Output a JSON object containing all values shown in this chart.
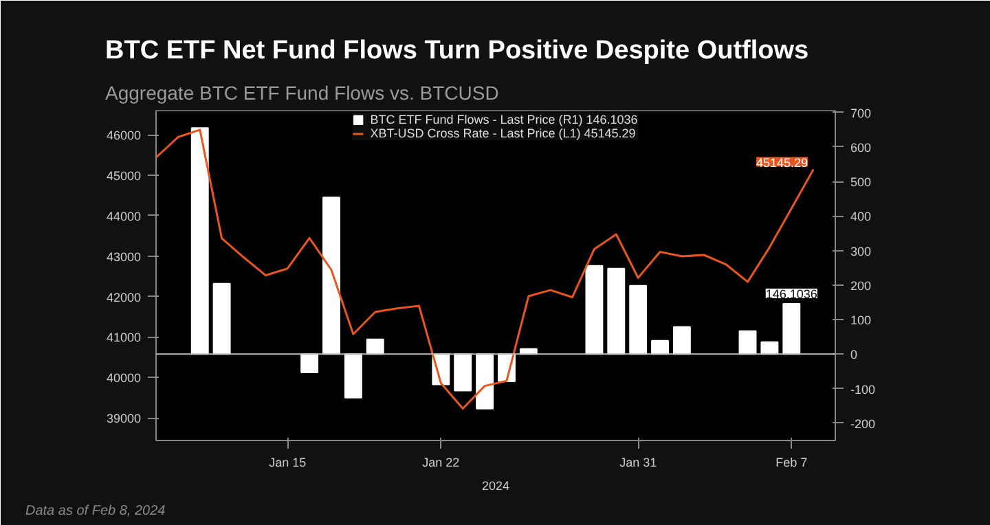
{
  "chart_data": {
    "type": "bar",
    "title": "BTC ETF Net Fund Flows Turn Positive Despite Outflows",
    "subtitle": "Aggregate BTC ETF Fund Flows vs. BTCUSD",
    "xlabel": "2024",
    "annotations": [
      "Data as of Feb 8, 2024"
    ],
    "xlim": [
      "2024-01-09",
      "2024-02-09"
    ],
    "xticks": [
      {
        "value": "2024-01-15",
        "label": "Jan 15"
      },
      {
        "value": "2024-01-22",
        "label": "Jan 22"
      },
      {
        "value": "2024-01-31",
        "label": "Jan 31"
      },
      {
        "value": "2024-02-07",
        "label": "Feb 7"
      }
    ],
    "ylim": [
      38440,
      46600
    ],
    "yticks": [
      39000,
      40000,
      41000,
      42000,
      43000,
      44000,
      45000,
      46000
    ],
    "y2lim": [
      -250,
      705
    ],
    "y2ticks": [
      -200,
      -100,
      0,
      100,
      200,
      300,
      400,
      500,
      600,
      700
    ],
    "grid": false,
    "ref_lines": [
      {
        "axis": "y2",
        "value": 0,
        "color": "#bbbbbb"
      }
    ],
    "legend": "top",
    "series": [
      {
        "name": "BTC ETF Fund Flows - Last Price (R1) 146.1036",
        "axis": "y2",
        "color": "#ffffff",
        "x": [
          "2024-01-11",
          "2024-01-12",
          "2024-01-16",
          "2024-01-17",
          "2024-01-18",
          "2024-01-19",
          "2024-01-22",
          "2024-01-23",
          "2024-01-24",
          "2024-01-25",
          "2024-01-26",
          "2024-01-29",
          "2024-01-30",
          "2024-01-31",
          "2024-02-01",
          "2024-02-02",
          "2024-02-05",
          "2024-02-06",
          "2024-02-07"
        ],
        "values": [
          655,
          204,
          -53,
          454,
          -126,
          43,
          -88,
          -106,
          -158,
          -79,
          15,
          256,
          248,
          198,
          39,
          79,
          67,
          35,
          146.1036
        ],
        "value_labels": [
          null,
          null,
          null,
          null,
          null,
          null,
          null,
          null,
          null,
          null,
          null,
          null,
          null,
          null,
          null,
          null,
          null,
          null,
          "146.1036"
        ]
      },
      {
        "name": "XBT-USD Cross Rate - Last Price (L1) 45145.29",
        "type": "line",
        "axis": "y",
        "color": "#e8551e",
        "x": [
          "2024-01-09",
          "2024-01-10",
          "2024-01-11",
          "2024-01-12",
          "2024-01-13",
          "2024-01-14",
          "2024-01-15",
          "2024-01-16",
          "2024-01-17",
          "2024-01-18",
          "2024-01-19",
          "2024-01-20",
          "2024-01-21",
          "2024-01-22",
          "2024-01-23",
          "2024-01-24",
          "2024-01-25",
          "2024-01-26",
          "2024-01-27",
          "2024-01-28",
          "2024-01-29",
          "2024-01-30",
          "2024-01-31",
          "2024-02-01",
          "2024-02-02",
          "2024-02-03",
          "2024-02-04",
          "2024-02-05",
          "2024-02-06",
          "2024-02-07",
          "2024-02-08"
        ],
        "values": [
          45440,
          45945,
          46127,
          43440,
          42970,
          42525,
          42695,
          43450,
          42660,
          41070,
          41620,
          41710,
          41770,
          39860,
          39230,
          39790,
          39915,
          42010,
          42160,
          41985,
          43175,
          43540,
          42465,
          43105,
          42995,
          43030,
          42800,
          42365,
          43220,
          44180,
          45145.29
        ],
        "value_labels": [
          null,
          null,
          null,
          null,
          null,
          null,
          null,
          null,
          null,
          null,
          null,
          null,
          null,
          null,
          null,
          null,
          null,
          null,
          null,
          null,
          null,
          null,
          null,
          null,
          null,
          null,
          null,
          null,
          null,
          null,
          "45145.29"
        ]
      }
    ]
  }
}
